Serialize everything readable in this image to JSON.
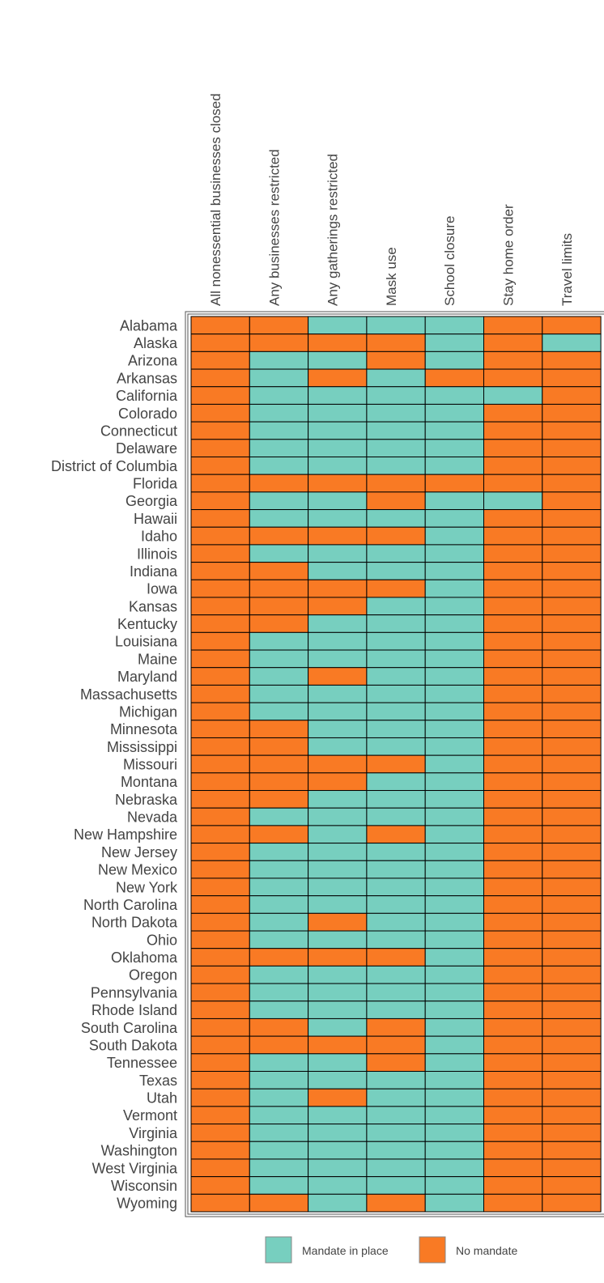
{
  "chart_data": {
    "type": "heatmap",
    "columns": [
      "All nonessential businesses closed",
      "Any businesses restricted",
      "Any gatherings restricted",
      "Mask use",
      "School closure",
      "Stay home order",
      "Travel limits"
    ],
    "rows": [
      "Alabama",
      "Alaska",
      "Arizona",
      "Arkansas",
      "California",
      "Colorado",
      "Connecticut",
      "Delaware",
      "District of Columbia",
      "Florida",
      "Georgia",
      "Hawaii",
      "Idaho",
      "Illinois",
      "Indiana",
      "Iowa",
      "Kansas",
      "Kentucky",
      "Louisiana",
      "Maine",
      "Maryland",
      "Massachusetts",
      "Michigan",
      "Minnesota",
      "Mississippi",
      "Missouri",
      "Montana",
      "Nebraska",
      "Nevada",
      "New Hampshire",
      "New Jersey",
      "New Mexico",
      "New York",
      "North Carolina",
      "North Dakota",
      "Ohio",
      "Oklahoma",
      "Oregon",
      "Pennsylvania",
      "Rhode Island",
      "South Carolina",
      "South Dakota",
      "Tennessee",
      "Texas",
      "Utah",
      "Vermont",
      "Virginia",
      "Washington",
      "West Virginia",
      "Wisconsin",
      "Wyoming"
    ],
    "legend": [
      {
        "name": "Mandate in place",
        "color": "#77cfbf",
        "value": 1
      },
      {
        "name": "No mandate",
        "color": "#f97a24",
        "value": 0
      }
    ],
    "values": [
      [
        0,
        0,
        1,
        1,
        1,
        0,
        0
      ],
      [
        0,
        0,
        0,
        0,
        1,
        0,
        1
      ],
      [
        0,
        1,
        1,
        0,
        1,
        0,
        0
      ],
      [
        0,
        1,
        0,
        1,
        0,
        0,
        0
      ],
      [
        0,
        1,
        1,
        1,
        1,
        1,
        0
      ],
      [
        0,
        1,
        1,
        1,
        1,
        0,
        0
      ],
      [
        0,
        1,
        1,
        1,
        1,
        0,
        0
      ],
      [
        0,
        1,
        1,
        1,
        1,
        0,
        0
      ],
      [
        0,
        1,
        1,
        1,
        1,
        0,
        0
      ],
      [
        0,
        0,
        0,
        0,
        0,
        0,
        0
      ],
      [
        0,
        1,
        1,
        0,
        1,
        1,
        0
      ],
      [
        0,
        1,
        1,
        1,
        1,
        0,
        0
      ],
      [
        0,
        0,
        0,
        0,
        1,
        0,
        0
      ],
      [
        0,
        1,
        1,
        1,
        1,
        0,
        0
      ],
      [
        0,
        0,
        1,
        1,
        1,
        0,
        0
      ],
      [
        0,
        0,
        0,
        0,
        1,
        0,
        0
      ],
      [
        0,
        0,
        0,
        1,
        1,
        0,
        0
      ],
      [
        0,
        0,
        1,
        1,
        1,
        0,
        0
      ],
      [
        0,
        1,
        1,
        1,
        1,
        0,
        0
      ],
      [
        0,
        1,
        1,
        1,
        1,
        0,
        0
      ],
      [
        0,
        1,
        0,
        1,
        1,
        0,
        0
      ],
      [
        0,
        1,
        1,
        1,
        1,
        0,
        0
      ],
      [
        0,
        1,
        1,
        1,
        1,
        0,
        0
      ],
      [
        0,
        0,
        1,
        1,
        1,
        0,
        0
      ],
      [
        0,
        0,
        1,
        1,
        1,
        0,
        0
      ],
      [
        0,
        0,
        0,
        0,
        1,
        0,
        0
      ],
      [
        0,
        0,
        0,
        1,
        1,
        0,
        0
      ],
      [
        0,
        0,
        1,
        1,
        1,
        0,
        0
      ],
      [
        0,
        1,
        1,
        1,
        1,
        0,
        0
      ],
      [
        0,
        0,
        1,
        0,
        1,
        0,
        0
      ],
      [
        0,
        1,
        1,
        1,
        1,
        0,
        0
      ],
      [
        0,
        1,
        1,
        1,
        1,
        0,
        0
      ],
      [
        0,
        1,
        1,
        1,
        1,
        0,
        0
      ],
      [
        0,
        1,
        1,
        1,
        1,
        0,
        0
      ],
      [
        0,
        1,
        0,
        1,
        1,
        0,
        0
      ],
      [
        0,
        1,
        1,
        1,
        1,
        0,
        0
      ],
      [
        0,
        0,
        0,
        0,
        1,
        0,
        0
      ],
      [
        0,
        1,
        1,
        1,
        1,
        0,
        0
      ],
      [
        0,
        1,
        1,
        1,
        1,
        0,
        0
      ],
      [
        0,
        1,
        1,
        1,
        1,
        0,
        0
      ],
      [
        0,
        0,
        1,
        0,
        1,
        0,
        0
      ],
      [
        0,
        0,
        0,
        0,
        1,
        0,
        0
      ],
      [
        0,
        1,
        1,
        0,
        1,
        0,
        0
      ],
      [
        0,
        1,
        1,
        1,
        1,
        0,
        0
      ],
      [
        0,
        1,
        0,
        1,
        1,
        0,
        0
      ],
      [
        0,
        1,
        1,
        1,
        1,
        0,
        0
      ],
      [
        0,
        1,
        1,
        1,
        1,
        0,
        0
      ],
      [
        0,
        1,
        1,
        1,
        1,
        0,
        0
      ],
      [
        0,
        1,
        1,
        1,
        1,
        0,
        0
      ],
      [
        0,
        1,
        1,
        1,
        1,
        0,
        0
      ],
      [
        0,
        0,
        1,
        0,
        1,
        0,
        0
      ]
    ]
  }
}
